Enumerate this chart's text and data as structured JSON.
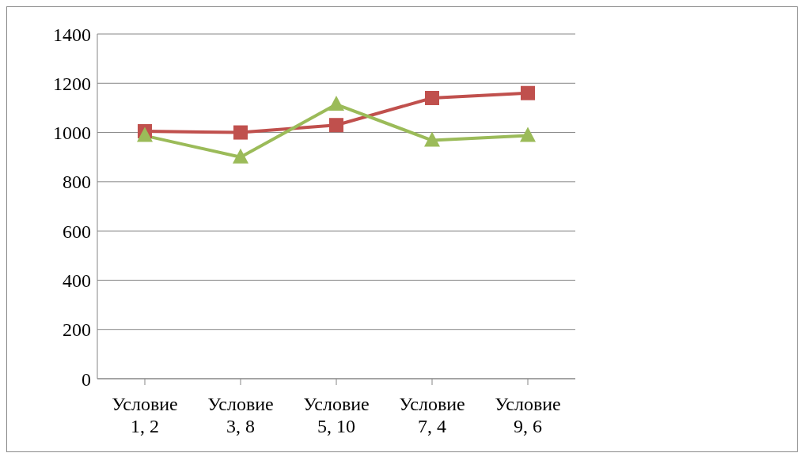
{
  "chart_data": {
    "type": "line",
    "categories": [
      "Условие 1, 2",
      "Условие 3, 8",
      "Условие 5, 10",
      "Условие 7, 4",
      "Условие 9, 6"
    ],
    "series": [
      {
        "color": "#c0504d",
        "marker": "square",
        "values": [
          1005,
          1000,
          1030,
          1140,
          1160
        ]
      },
      {
        "color": "#9bbb59",
        "marker": "triangle",
        "values": [
          987,
          900,
          1114,
          968,
          987
        ]
      }
    ],
    "ylim": [
      0,
      1400
    ],
    "yticks": [
      0,
      200,
      400,
      600,
      800,
      1000,
      1200,
      1400
    ],
    "grid": "y"
  }
}
